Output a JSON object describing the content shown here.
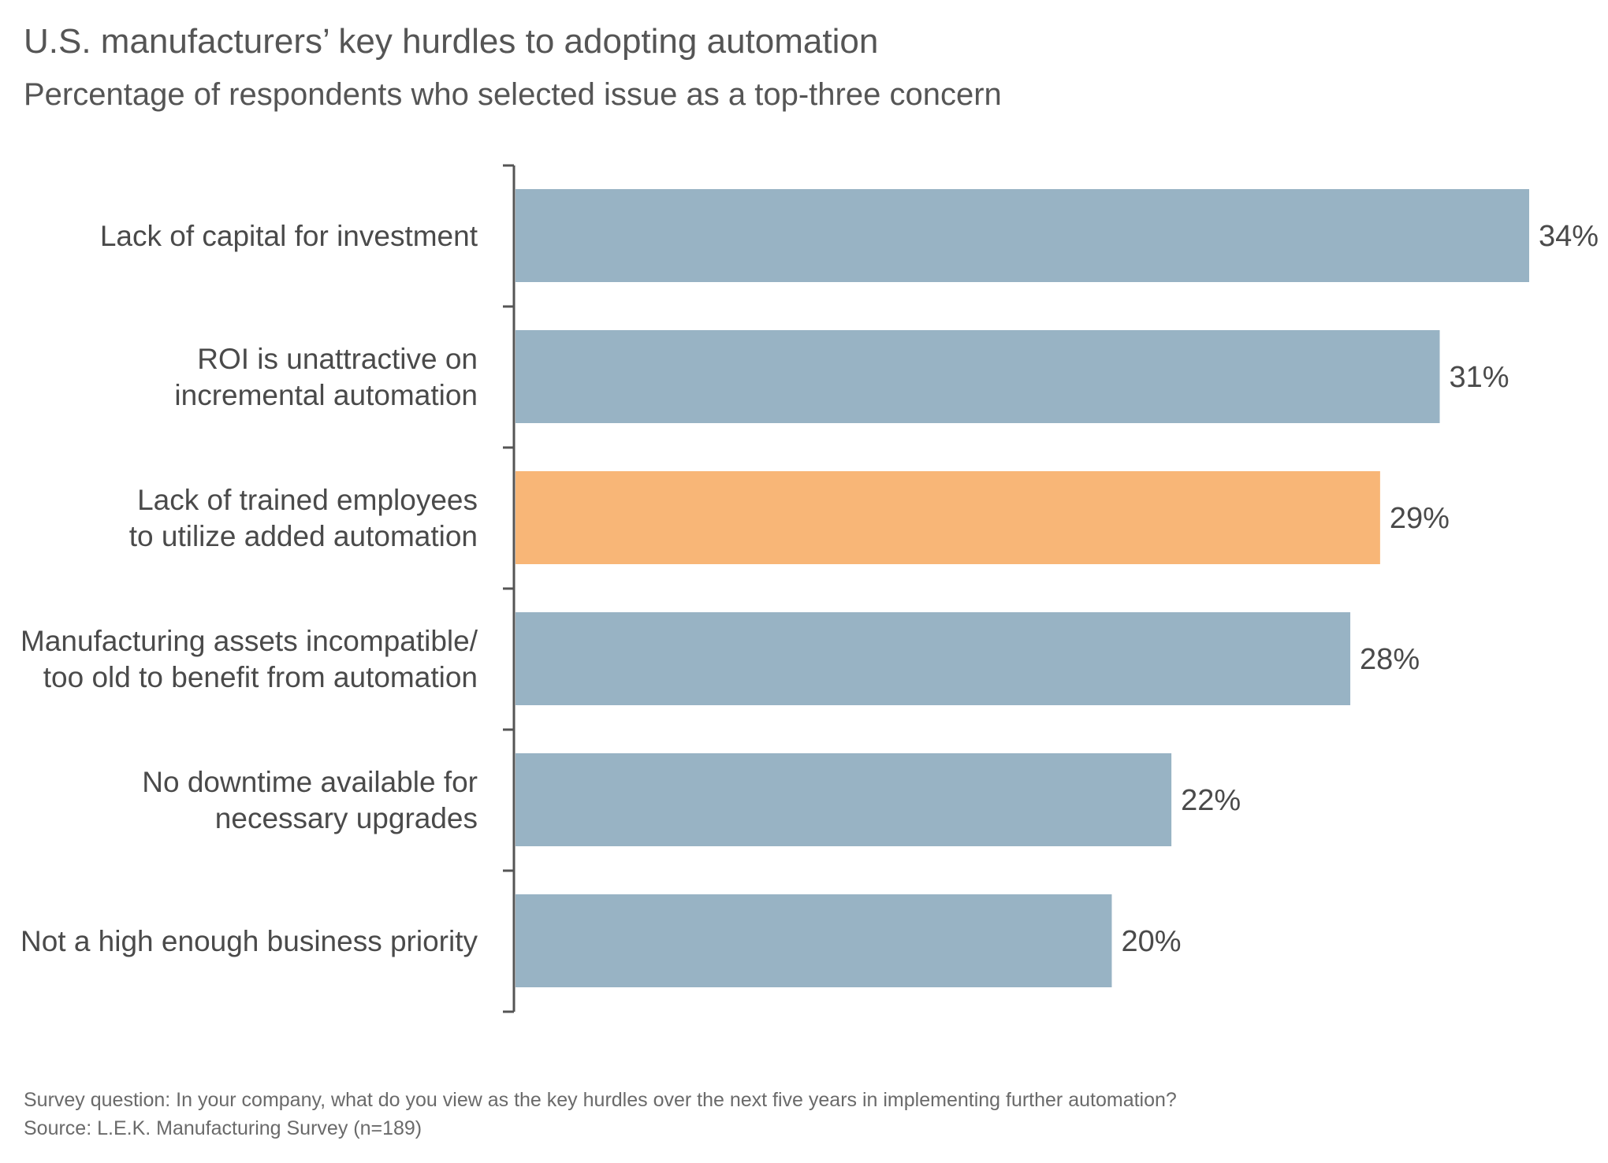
{
  "title": "U.S. manufacturers’ key hurdles to adopting automation",
  "subtitle": "Percentage of respondents who selected issue as a top-three concern",
  "footnote": {
    "question": "Survey question: In your company, what do you view as the key hurdles over the next five years in implementing further automation?",
    "source": "Source: L.E.K. Manufacturing Survey (n=189)"
  },
  "colors": {
    "bar": "#98b3c4",
    "highlight": "#f8b677",
    "axis": "#555555",
    "text": "#4a4a4a"
  },
  "chart_data": {
    "type": "bar",
    "orientation": "horizontal",
    "categories": [
      [
        "Lack of capital for investment"
      ],
      [
        "ROI is unattractive on",
        "incremental automation"
      ],
      [
        "Lack of trained employees",
        "to utilize added automation"
      ],
      [
        "Manufacturing assets incompatible/",
        "too old to benefit from automation"
      ],
      [
        "No downtime available for",
        "necessary upgrades"
      ],
      [
        "Not a high enough business priority"
      ]
    ],
    "values": [
      34,
      31,
      29,
      28,
      22,
      20
    ],
    "value_labels": [
      "34%",
      "31%",
      "29%",
      "28%",
      "22%",
      "20%"
    ],
    "highlight_index": 2,
    "xlim": [
      0,
      34
    ],
    "grid": false,
    "legend": "none"
  }
}
